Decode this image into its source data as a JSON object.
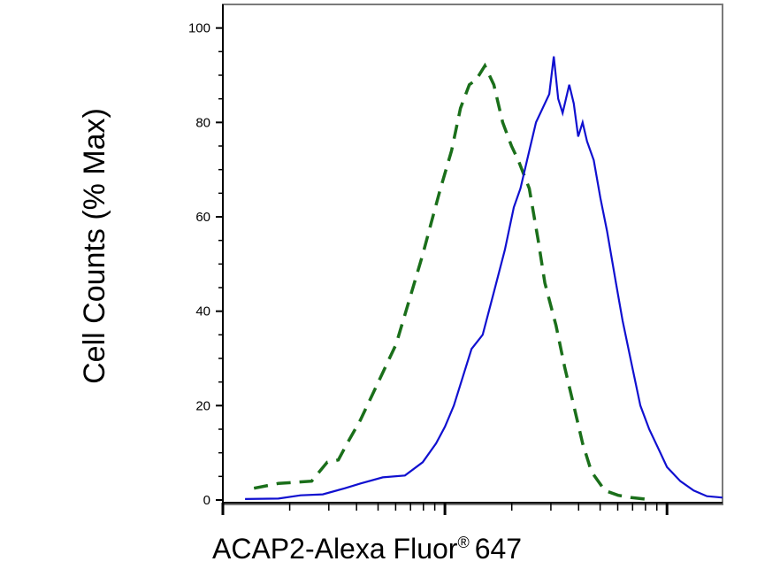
{
  "chart_data": {
    "type": "line",
    "ylabel": "Cell Counts (% Max)",
    "xlabel": "ACAP2-Alexa Fluor",
    "xlabel_mark": "®",
    "xlabel_suffix": "647",
    "x_scale": "log",
    "x_range_decades": [
      0,
      2.25
    ],
    "ylim": [
      0,
      105
    ],
    "y_ticks": [
      0,
      20,
      40,
      60,
      80,
      100
    ],
    "y_tick_labels": [
      "0",
      "20",
      "40",
      "60",
      "80",
      "100"
    ],
    "grid": false,
    "legend": "none",
    "series": [
      {
        "style": "solid",
        "color": "#1010d0",
        "points": [
          [
            0.1,
            0.2
          ],
          [
            0.25,
            0.3
          ],
          [
            0.35,
            1
          ],
          [
            0.45,
            1.2
          ],
          [
            0.55,
            2.5
          ],
          [
            0.62,
            3.5
          ],
          [
            0.72,
            4.8
          ],
          [
            0.82,
            5.2
          ],
          [
            0.9,
            8
          ],
          [
            0.96,
            12
          ],
          [
            1.0,
            15.5
          ],
          [
            1.04,
            20
          ],
          [
            1.08,
            26
          ],
          [
            1.12,
            32
          ],
          [
            1.17,
            35
          ],
          [
            1.22,
            44
          ],
          [
            1.27,
            53
          ],
          [
            1.31,
            62
          ],
          [
            1.34,
            66
          ],
          [
            1.37,
            72
          ],
          [
            1.41,
            80
          ],
          [
            1.44,
            83
          ],
          [
            1.47,
            86
          ],
          [
            1.49,
            94
          ],
          [
            1.51,
            85
          ],
          [
            1.53,
            82
          ],
          [
            1.56,
            88
          ],
          [
            1.58,
            84
          ],
          [
            1.6,
            77
          ],
          [
            1.62,
            80
          ],
          [
            1.64,
            76
          ],
          [
            1.67,
            72
          ],
          [
            1.7,
            64
          ],
          [
            1.73,
            57
          ],
          [
            1.77,
            46
          ],
          [
            1.8,
            38
          ],
          [
            1.84,
            29
          ],
          [
            1.88,
            20
          ],
          [
            1.92,
            15
          ],
          [
            1.96,
            11
          ],
          [
            2.0,
            7
          ],
          [
            2.06,
            4
          ],
          [
            2.12,
            2
          ],
          [
            2.18,
            0.8
          ],
          [
            2.23,
            0.6
          ],
          [
            2.25,
            0.5
          ]
        ]
      },
      {
        "style": "dashed",
        "color": "#1a6f1a",
        "points": [
          [
            0.14,
            2.5
          ],
          [
            0.25,
            3.5
          ],
          [
            0.4,
            4
          ],
          [
            0.47,
            8
          ],
          [
            0.52,
            8.5
          ],
          [
            0.56,
            12
          ],
          [
            0.62,
            17
          ],
          [
            0.7,
            25
          ],
          [
            0.78,
            33
          ],
          [
            0.85,
            44
          ],
          [
            0.9,
            52
          ],
          [
            0.94,
            59
          ],
          [
            0.98,
            66
          ],
          [
            1.03,
            74
          ],
          [
            1.07,
            83
          ],
          [
            1.11,
            88
          ],
          [
            1.14,
            89
          ],
          [
            1.18,
            92
          ],
          [
            1.22,
            88
          ],
          [
            1.26,
            80
          ],
          [
            1.3,
            75
          ],
          [
            1.33,
            72
          ],
          [
            1.38,
            66
          ],
          [
            1.42,
            55
          ],
          [
            1.45,
            46
          ],
          [
            1.5,
            37
          ],
          [
            1.54,
            28
          ],
          [
            1.58,
            20
          ],
          [
            1.62,
            12
          ],
          [
            1.66,
            6
          ],
          [
            1.72,
            2
          ],
          [
            1.78,
            1
          ],
          [
            1.84,
            0.5
          ],
          [
            1.9,
            0.2
          ]
        ]
      }
    ]
  }
}
